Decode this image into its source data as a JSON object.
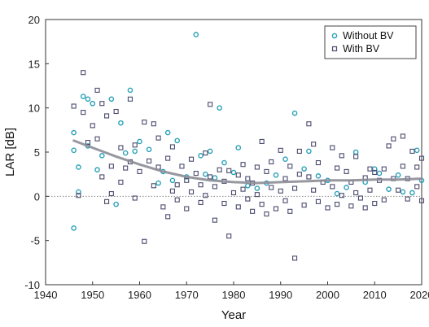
{
  "chart_data": {
    "type": "scatter",
    "title": "",
    "xlabel": "Year",
    "ylabel": "LAR [dB]",
    "xlim": [
      1940,
      2020
    ],
    "ylim": [
      -10,
      20
    ],
    "xticks": [
      1940,
      1950,
      1960,
      1970,
      1980,
      1990,
      2000,
      2010,
      2020
    ],
    "yticks": [
      -10,
      -5,
      0,
      5,
      10,
      15,
      20
    ],
    "grid": false,
    "zero_line": {
      "y": 0,
      "style": "dotted"
    },
    "legend": {
      "placement": "top-right"
    },
    "series": [
      {
        "name": "Without BV",
        "marker": "circle",
        "color": "#2aa1b8",
        "points": [
          [
            1946,
            7.2
          ],
          [
            1946,
            5.2
          ],
          [
            1946,
            -3.6
          ],
          [
            1947,
            3.3
          ],
          [
            1947,
            0.5
          ],
          [
            1948,
            11.3
          ],
          [
            1949,
            11.0
          ],
          [
            1949,
            5.7
          ],
          [
            1950,
            10.5
          ],
          [
            1951,
            3.0
          ],
          [
            1952,
            4.6
          ],
          [
            1954,
            11.0
          ],
          [
            1955,
            -0.9
          ],
          [
            1956,
            8.3
          ],
          [
            1957,
            4.9
          ],
          [
            1958,
            12.0
          ],
          [
            1959,
            5.1
          ],
          [
            1960,
            6.2
          ],
          [
            1962,
            5.3
          ],
          [
            1964,
            1.5
          ],
          [
            1965,
            2.8
          ],
          [
            1966,
            7.2
          ],
          [
            1967,
            1.8
          ],
          [
            1968,
            6.3
          ],
          [
            1970,
            2.2
          ],
          [
            1972,
            18.3
          ],
          [
            1973,
            4.6
          ],
          [
            1974,
            2.5
          ],
          [
            1975,
            5.1
          ],
          [
            1976,
            2.1
          ],
          [
            1977,
            10.0
          ],
          [
            1978,
            3.8
          ],
          [
            1980,
            2.7
          ],
          [
            1981,
            5.5
          ],
          [
            1983,
            1.2
          ],
          [
            1985,
            0.9
          ],
          [
            1987,
            1.5
          ],
          [
            1989,
            2.4
          ],
          [
            1991,
            4.2
          ],
          [
            1993,
            9.4
          ],
          [
            1995,
            3.1
          ],
          [
            1996,
            5.1
          ],
          [
            1998,
            2.3
          ],
          [
            2000,
            1.8
          ],
          [
            2002,
            0.3
          ],
          [
            2004,
            1.0
          ],
          [
            2006,
            5.0
          ],
          [
            2008,
            1.6
          ],
          [
            2010,
            3.1
          ],
          [
            2011,
            2.6
          ],
          [
            2013,
            0.8
          ],
          [
            2015,
            2.4
          ],
          [
            2016,
            0.5
          ],
          [
            2018,
            0.4
          ],
          [
            2019,
            5.2
          ],
          [
            2020,
            1.8
          ]
        ]
      },
      {
        "name": "With BV",
        "marker": "square",
        "color": "#4a4a6e",
        "points": [
          [
            1946,
            10.2
          ],
          [
            1947,
            0.1
          ],
          [
            1948,
            14.0
          ],
          [
            1948,
            9.5
          ],
          [
            1949,
            6.1
          ],
          [
            1950,
            8.0
          ],
          [
            1951,
            12.0
          ],
          [
            1951,
            6.5
          ],
          [
            1952,
            10.5
          ],
          [
            1952,
            2.2
          ],
          [
            1953,
            9.1
          ],
          [
            1953,
            -0.6
          ],
          [
            1954,
            3.4
          ],
          [
            1954,
            0.3
          ],
          [
            1955,
            9.6
          ],
          [
            1956,
            5.5
          ],
          [
            1956,
            1.6
          ],
          [
            1957,
            3.2
          ],
          [
            1958,
            11.0
          ],
          [
            1958,
            3.9
          ],
          [
            1959,
            5.8
          ],
          [
            1959,
            -0.2
          ],
          [
            1960,
            2.8
          ],
          [
            1961,
            8.4
          ],
          [
            1961,
            -5.1
          ],
          [
            1962,
            4.0
          ],
          [
            1963,
            8.2
          ],
          [
            1963,
            1.2
          ],
          [
            1964,
            6.6
          ],
          [
            1964,
            3.3
          ],
          [
            1965,
            -1.2
          ],
          [
            1966,
            4.3
          ],
          [
            1966,
            -2.3
          ],
          [
            1967,
            5.6
          ],
          [
            1967,
            0.6
          ],
          [
            1968,
            1.3
          ],
          [
            1968,
            -0.4
          ],
          [
            1969,
            3.4
          ],
          [
            1970,
            1.8
          ],
          [
            1970,
            -1.4
          ],
          [
            1971,
            4.2
          ],
          [
            1971,
            0.5
          ],
          [
            1972,
            2.6
          ],
          [
            1973,
            1.3
          ],
          [
            1973,
            -0.7
          ],
          [
            1974,
            4.9
          ],
          [
            1974,
            0.1
          ],
          [
            1975,
            10.4
          ],
          [
            1975,
            2.2
          ],
          [
            1976,
            1.1
          ],
          [
            1976,
            -2.7
          ],
          [
            1977,
            3.0
          ],
          [
            1978,
            -0.8
          ],
          [
            1978,
            1.7
          ],
          [
            1979,
            -4.5
          ],
          [
            1979,
            2.9
          ],
          [
            1980,
            0.4
          ],
          [
            1981,
            2.4
          ],
          [
            1981,
            -1.2
          ],
          [
            1982,
            3.6
          ],
          [
            1982,
            0.8
          ],
          [
            1983,
            -0.3
          ],
          [
            1983,
            2.0
          ],
          [
            1984,
            1.5
          ],
          [
            1984,
            -1.7
          ],
          [
            1985,
            3.3
          ],
          [
            1985,
            0.2
          ],
          [
            1986,
            6.2
          ],
          [
            1986,
            -0.9
          ],
          [
            1987,
            2.8
          ],
          [
            1987,
            -2.0
          ],
          [
            1988,
            1.0
          ],
          [
            1988,
            3.9
          ],
          [
            1989,
            -1.4
          ],
          [
            1990,
            0.6
          ],
          [
            1990,
            5.2
          ],
          [
            1991,
            -0.5
          ],
          [
            1991,
            2.0
          ],
          [
            1992,
            -1.7
          ],
          [
            1992,
            3.4
          ],
          [
            1993,
            -7.0
          ],
          [
            1993,
            0.9
          ],
          [
            1994,
            5.1
          ],
          [
            1994,
            2.5
          ],
          [
            1995,
            -1.0
          ],
          [
            1996,
            2.2
          ],
          [
            1996,
            8.2
          ],
          [
            1997,
            0.7
          ],
          [
            1997,
            5.9
          ],
          [
            1998,
            3.8
          ],
          [
            1998,
            -0.6
          ],
          [
            1999,
            1.6
          ],
          [
            2000,
            -1.3
          ],
          [
            2001,
            5.5
          ],
          [
            2001,
            1.1
          ],
          [
            2002,
            3.2
          ],
          [
            2002,
            -0.9
          ],
          [
            2003,
            0.1
          ],
          [
            2003,
            4.6
          ],
          [
            2004,
            2.8
          ],
          [
            2005,
            -1.1
          ],
          [
            2005,
            1.6
          ],
          [
            2006,
            0.4
          ],
          [
            2006,
            4.5
          ],
          [
            2007,
            -0.2
          ],
          [
            2008,
            2.1
          ],
          [
            2008,
            -1.3
          ],
          [
            2009,
            3.1
          ],
          [
            2009,
            0.7
          ],
          [
            2010,
            -0.8
          ],
          [
            2010,
            2.7
          ],
          [
            2011,
            1.8
          ],
          [
            2012,
            3.1
          ],
          [
            2012,
            -0.4
          ],
          [
            2013,
            5.7
          ],
          [
            2014,
            2.0
          ],
          [
            2014,
            6.5
          ],
          [
            2015,
            0.7
          ],
          [
            2016,
            6.8
          ],
          [
            2016,
            3.4
          ],
          [
            2017,
            2.0
          ],
          [
            2017,
            -0.3
          ],
          [
            2018,
            5.1
          ],
          [
            2019,
            1.1
          ],
          [
            2019,
            3.3
          ],
          [
            2020,
            -0.5
          ],
          [
            2020,
            4.3
          ]
        ]
      }
    ],
    "trend_line": {
      "color": "#8c8c96",
      "points": [
        [
          1946,
          6.3
        ],
        [
          1950,
          5.5
        ],
        [
          1955,
          4.5
        ],
        [
          1960,
          3.6
        ],
        [
          1965,
          2.8
        ],
        [
          1970,
          2.2
        ],
        [
          1975,
          1.8
        ],
        [
          1980,
          1.6
        ],
        [
          1985,
          1.5
        ],
        [
          1990,
          1.6
        ],
        [
          1995,
          1.7
        ],
        [
          2000,
          1.8
        ],
        [
          2005,
          1.8
        ],
        [
          2010,
          1.9
        ],
        [
          2015,
          1.9
        ],
        [
          2020,
          2.0
        ]
      ]
    }
  }
}
